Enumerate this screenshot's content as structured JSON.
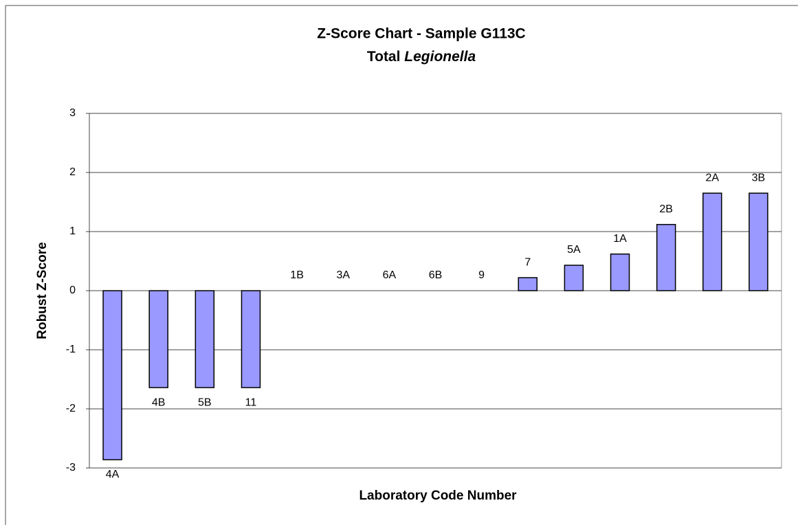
{
  "chart_data": {
    "type": "bar",
    "title": "Z-Score Chart - Sample G113C",
    "subtitle": [
      "Total",
      "Legionella"
    ],
    "x_label": "Laboratory Code Number",
    "y_label": "Robust Z-Score",
    "categories": [
      "4A",
      "4B",
      "5B",
      "11",
      "1B",
      "3A",
      "6A",
      "6B",
      "9",
      "7",
      "5A",
      "1A",
      "2B",
      "2A",
      "3B"
    ],
    "values": [
      -2.86,
      -1.64,
      -1.64,
      -1.64,
      0,
      0,
      0,
      0,
      0,
      0.22,
      0.43,
      0.62,
      1.12,
      1.65,
      1.65
    ],
    "color": "#9999ff",
    "ylim": [
      -3,
      3
    ],
    "yticks": [
      -3,
      -2,
      -1,
      0,
      1,
      2,
      3
    ],
    "grid": true
  }
}
